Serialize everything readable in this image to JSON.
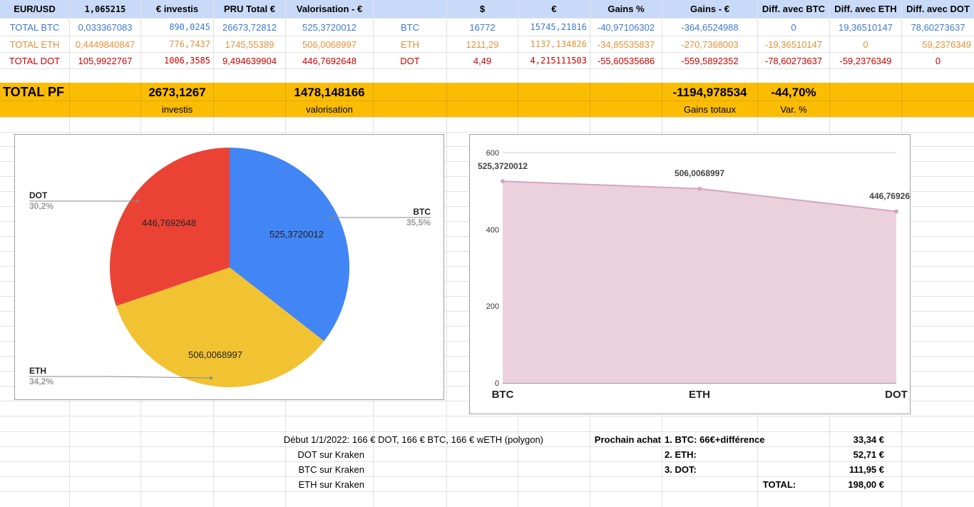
{
  "header": {
    "cols": [
      "EUR/USD",
      "1,065215",
      "€ investis",
      "PRU Total €",
      "Valorisation - €",
      "",
      "$",
      "€",
      "Gains %",
      "Gains - €",
      "Diff. avec BTC",
      "Diff. avec ETH",
      "Diff. avec DOT"
    ]
  },
  "rows": [
    {
      "label": "TOTAL BTC",
      "qty": "0,033367083",
      "invest": "890,0245",
      "pru": "26673,72812",
      "valo": "525,3720012",
      "sym": "BTC",
      "usd": "16772",
      "eur": "15745,21816",
      "gains_pct": "-40,97106302",
      "gains_eur": "-364,6524988",
      "d_btc": "0",
      "d_eth": "19,36510147",
      "d_dot": "78,60273637"
    },
    {
      "label": "TOTAL ETH",
      "qty": "0,4449840847",
      "invest": "776,7437",
      "pru": "1745,55389",
      "valo": "506,0068997",
      "sym": "ETH",
      "usd": "1211,29",
      "eur": "1137,134826",
      "gains_pct": "-34,85535837",
      "gains_eur": "-270,7368003",
      "d_btc": "-19,36510147",
      "d_eth": "0",
      "d_dot": "59,2376349"
    },
    {
      "label": "TOTAL DOT",
      "qty": "105,9922767",
      "invest": "1006,3585",
      "pru": "9,494639904",
      "valo": "446,7692648",
      "sym": "DOT",
      "usd": "4,49",
      "eur": "4,215111503",
      "gains_pct": "-55,60535686",
      "gains_eur": "-559,5892352",
      "d_btc": "-78,60273637",
      "d_eth": "-59,2376349",
      "d_dot": "0"
    }
  ],
  "totals": {
    "label": "TOTAL PF",
    "invest": "2673,1267",
    "invest_caption": "investis",
    "valo": "1478,148166",
    "valo_caption": "valorisation",
    "gains": "-1194,978534",
    "gains_caption": "Gains totaux",
    "var": "-44,70%",
    "var_caption": "Var. %"
  },
  "colors": {
    "btc": "#4285f4",
    "eth": "#f1c232",
    "dot": "#ea4335",
    "band": "#fbbc04",
    "area": "#ead1dc",
    "area_line": "#d5a6bd"
  },
  "chart_data": [
    {
      "type": "pie",
      "categories": [
        "BTC",
        "ETH",
        "DOT"
      ],
      "values": [
        525.3720012,
        506.0068997,
        446.7692648
      ],
      "data_labels": [
        "525,3720012",
        "506,0068997",
        "446,7692648"
      ],
      "legend_labels": [
        "BTC",
        "ETH",
        "DOT"
      ],
      "percent_labels": [
        "35,5%",
        "34,2%",
        "30,2%"
      ],
      "title": ""
    },
    {
      "type": "area",
      "categories": [
        "BTC",
        "ETH",
        "DOT"
      ],
      "values": [
        525.3720012,
        506.0068997,
        446.7692648
      ],
      "data_labels": [
        "525,3720012",
        "506,0068997",
        "446,76926"
      ],
      "ylim": [
        0,
        600
      ],
      "yticks": [
        "0",
        "200",
        "400",
        "600"
      ],
      "grid": true,
      "title": ""
    }
  ],
  "notes": {
    "line1": "Début 1/1/2022: 166 € DOT, 166 € BTC, 166 € wETH (polygon)",
    "line2": "DOT sur Kraken",
    "line3": "BTC sur Kraken",
    "line4": "ETH sur Kraken",
    "next_label": "Prochain achat",
    "items": [
      "1. BTC: 66€+différence",
      "2. ETH:",
      "3. DOT:"
    ],
    "amounts": [
      "33,34 €",
      "52,71 €",
      "111,95 €"
    ],
    "total_label": "TOTAL:",
    "total_amount": "198,00 €"
  }
}
